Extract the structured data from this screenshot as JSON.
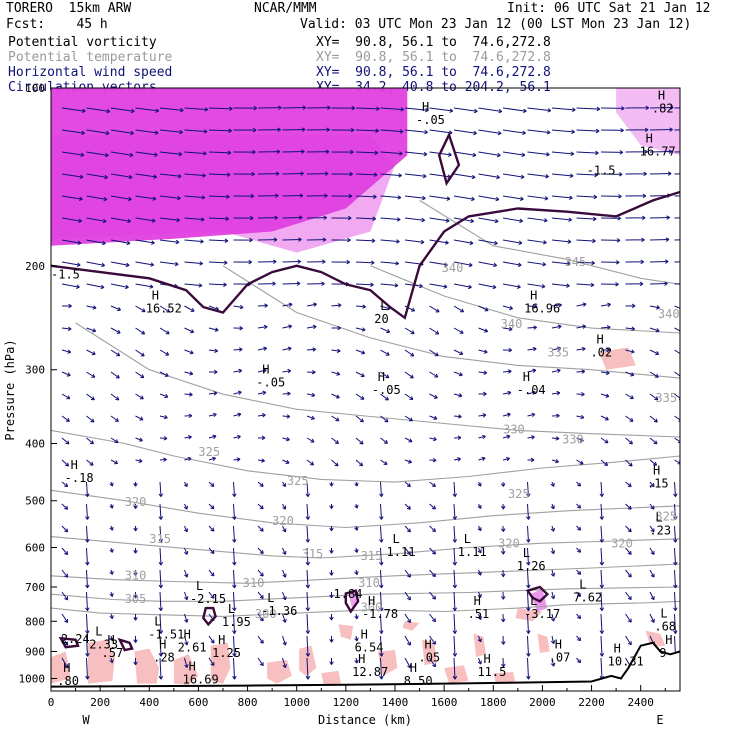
{
  "header": {
    "model": "TORERO  15km ARW",
    "org": "NCAR/MMM",
    "init": "Init: 06 UTC Sat 21 Jan 12",
    "fcst": "Fcst:    45 h",
    "valid": "Valid: 03 UTC Mon 23 Jan 12 (00 LST Mon 23 Jan 12)",
    "fields": [
      {
        "name": "Potential vorticity",
        "xy": "XY=  90.8, 56.1 to  74.6,272.8",
        "color": "#000000"
      },
      {
        "name": "Potential temperature",
        "xy": "XY=  90.8, 56.1 to  74.6,272.8",
        "color": "#9a9a9a"
      },
      {
        "name": "Horizontal wind speed",
        "xy": "XY=  90.8, 56.1 to  74.6,272.8",
        "color": "#11117a"
      },
      {
        "name": "Circulation vectors",
        "xy": "XY=  34.2, 40.8 to 204.2, 56.1",
        "color": "#11117a"
      }
    ]
  },
  "chart_data": {
    "type": "cross-section",
    "xlabel": "Distance (km)",
    "ylabel": "Pressure (hPa)",
    "xlim": [
      0,
      2560
    ],
    "ylim": [
      1050,
      100
    ],
    "y_scale": "log",
    "xticks": [
      0,
      200,
      400,
      600,
      800,
      1000,
      1200,
      1400,
      1600,
      1800,
      2000,
      2200,
      2400
    ],
    "yticks": [
      200,
      300,
      400,
      500,
      600,
      700,
      800,
      900,
      1000
    ],
    "y_top_label": "100",
    "end_labels": {
      "left": "W",
      "right": "E"
    },
    "colors": {
      "wind": "#11117a",
      "pv_contour": "#3a0a3a",
      "theta": "#a0a0a0",
      "shade_pink": "#f6b4b4",
      "shade_magenta": "#e040e0"
    },
    "theta_contours": [
      {
        "value": 300,
        "points": [
          [
            0,
            760
          ],
          [
            200,
            775
          ],
          [
            450,
            780
          ],
          [
            700,
            785
          ],
          [
            1000,
            775
          ],
          [
            1300,
            765
          ],
          [
            1600,
            770
          ],
          [
            1900,
            760
          ],
          [
            2100,
            750
          ],
          [
            2400,
            745
          ],
          [
            2560,
            740
          ]
        ]
      },
      {
        "value": 305,
        "points": [
          [
            0,
            720
          ],
          [
            250,
            735
          ],
          [
            450,
            740
          ],
          [
            700,
            740
          ],
          [
            1000,
            730
          ],
          [
            1300,
            720
          ],
          [
            1700,
            715
          ],
          [
            2100,
            705
          ],
          [
            2560,
            700
          ]
        ]
      },
      {
        "value": 310,
        "points": [
          [
            0,
            670
          ],
          [
            250,
            680
          ],
          [
            500,
            685
          ],
          [
            800,
            690
          ],
          [
            1100,
            680
          ],
          [
            1400,
            670
          ],
          [
            1800,
            660
          ],
          [
            2200,
            650
          ],
          [
            2560,
            640
          ]
        ]
      },
      {
        "value": 315,
        "points": [
          [
            0,
            575
          ],
          [
            300,
            590
          ],
          [
            600,
            605
          ],
          [
            900,
            620
          ],
          [
            1100,
            625
          ],
          [
            1400,
            615
          ],
          [
            1700,
            600
          ],
          [
            2000,
            590
          ],
          [
            2300,
            585
          ],
          [
            2560,
            580
          ]
        ]
      },
      {
        "value": 320,
        "points": [
          [
            0,
            480
          ],
          [
            300,
            500
          ],
          [
            600,
            525
          ],
          [
            900,
            545
          ],
          [
            1200,
            555
          ],
          [
            1500,
            545
          ],
          [
            1800,
            530
          ],
          [
            2100,
            520
          ],
          [
            2560,
            510
          ]
        ]
      },
      {
        "value": 325,
        "points": [
          [
            0,
            380
          ],
          [
            300,
            400
          ],
          [
            500,
            420
          ],
          [
            800,
            445
          ],
          [
            1100,
            460
          ],
          [
            1400,
            465
          ],
          [
            1700,
            455
          ],
          [
            2000,
            440
          ],
          [
            2300,
            430
          ],
          [
            2560,
            420
          ]
        ]
      },
      {
        "value": 330,
        "points": [
          [
            100,
            250
          ],
          [
            400,
            300
          ],
          [
            700,
            330
          ],
          [
            1000,
            350
          ],
          [
            1300,
            360
          ],
          [
            1600,
            370
          ],
          [
            1900,
            380
          ],
          [
            2200,
            385
          ],
          [
            2560,
            390
          ]
        ]
      },
      {
        "value": 335,
        "points": [
          [
            700,
            200
          ],
          [
            1000,
            240
          ],
          [
            1300,
            265
          ],
          [
            1600,
            285
          ],
          [
            1900,
            295
          ],
          [
            2200,
            300
          ],
          [
            2560,
            310
          ]
        ]
      },
      {
        "value": 340,
        "points": [
          [
            1300,
            200
          ],
          [
            1600,
            225
          ],
          [
            1900,
            245
          ],
          [
            2200,
            255
          ],
          [
            2560,
            260
          ]
        ]
      },
      {
        "value": 345,
        "points": [
          [
            1500,
            155
          ],
          [
            1800,
            185
          ],
          [
            2100,
            195
          ],
          [
            2400,
            210
          ],
          [
            2560,
            215
          ]
        ]
      }
    ],
    "theta_label_positions": [
      {
        "text": "300",
        "x": 830,
        "p": 790
      },
      {
        "text": "300",
        "x": 1260,
        "p": 770
      },
      {
        "text": "305",
        "x": 300,
        "p": 745
      },
      {
        "text": "310",
        "x": 780,
        "p": 700
      },
      {
        "text": "310",
        "x": 1250,
        "p": 700
      },
      {
        "text": "310",
        "x": 300,
        "p": 680
      },
      {
        "text": "315",
        "x": 400,
        "p": 590
      },
      {
        "text": "315",
        "x": 1020,
        "p": 625
      },
      {
        "text": "315",
        "x": 1260,
        "p": 630
      },
      {
        "text": "320",
        "x": 300,
        "p": 510
      },
      {
        "text": "320",
        "x": 900,
        "p": 550
      },
      {
        "text": "320",
        "x": 1820,
        "p": 600
      },
      {
        "text": "320",
        "x": 2280,
        "p": 600
      },
      {
        "text": "325",
        "x": 600,
        "p": 420
      },
      {
        "text": "325",
        "x": 960,
        "p": 470
      },
      {
        "text": "325",
        "x": 1860,
        "p": 495
      },
      {
        "text": "325",
        "x": 2460,
        "p": 540
      },
      {
        "text": "330",
        "x": 1840,
        "p": 385
      },
      {
        "text": "330",
        "x": 2080,
        "p": 400
      },
      {
        "text": "335",
        "x": 2020,
        "p": 285
      },
      {
        "text": "335",
        "x": 2460,
        "p": 340
      },
      {
        "text": "340",
        "x": 1590,
        "p": 205
      },
      {
        "text": "340",
        "x": 1830,
        "p": 255
      },
      {
        "text": "340",
        "x": 2470,
        "p": 245
      },
      {
        "text": "345",
        "x": 2090,
        "p": 200
      }
    ],
    "pv_contours": [
      {
        "value": 1.5,
        "points": [
          [
            0,
            200
          ],
          [
            200,
            205
          ],
          [
            400,
            210
          ],
          [
            550,
            220
          ],
          [
            620,
            235
          ],
          [
            700,
            240
          ],
          [
            800,
            215
          ],
          [
            900,
            205
          ],
          [
            1000,
            200
          ],
          [
            1100,
            205
          ],
          [
            1200,
            215
          ],
          [
            1300,
            220
          ],
          [
            1380,
            235
          ],
          [
            1440,
            245
          ],
          [
            1500,
            200
          ],
          [
            1600,
            175
          ],
          [
            1700,
            165
          ],
          [
            1900,
            160
          ],
          [
            2100,
            162
          ],
          [
            2300,
            165
          ],
          [
            2450,
            155
          ],
          [
            2560,
            150
          ]
        ]
      }
    ],
    "pv_closed_contours": [
      {
        "points": [
          [
            1580,
            130
          ],
          [
            1620,
            120
          ],
          [
            1660,
            135
          ],
          [
            1610,
            145
          ],
          [
            1580,
            130
          ]
        ]
      },
      {
        "points": [
          [
            1200,
            718
          ],
          [
            1240,
            710
          ],
          [
            1250,
            740
          ],
          [
            1220,
            770
          ],
          [
            1200,
            745
          ],
          [
            1200,
            718
          ]
        ]
      },
      {
        "points": [
          [
            1940,
            710
          ],
          [
            1990,
            700
          ],
          [
            2020,
            720
          ],
          [
            1990,
            740
          ],
          [
            1960,
            730
          ],
          [
            1940,
            710
          ]
        ]
      },
      {
        "points": [
          [
            630,
            760
          ],
          [
            660,
            760
          ],
          [
            670,
            785
          ],
          [
            640,
            810
          ],
          [
            620,
            790
          ],
          [
            630,
            760
          ]
        ]
      },
      {
        "points": [
          [
            40,
            855
          ],
          [
            100,
            860
          ],
          [
            110,
            880
          ],
          [
            60,
            885
          ],
          [
            40,
            855
          ]
        ]
      },
      {
        "points": [
          [
            280,
            860
          ],
          [
            320,
            870
          ],
          [
            330,
            890
          ],
          [
            300,
            895
          ],
          [
            280,
            860
          ]
        ]
      }
    ],
    "pv_labels": [
      {
        "text": "-1.5",
        "x": 0,
        "p": 210
      },
      {
        "text": "-1.5",
        "x": 2180,
        "p": 140
      },
      {
        "text": "2.24",
        "x": 40,
        "p": 870
      },
      {
        "text": "1.84",
        "x": 1150,
        "p": 730
      }
    ],
    "extrema": [
      {
        "kind": "H",
        "value": ".82",
        "x": 2470,
        "p": 110
      },
      {
        "kind": "H",
        "value": "-.05",
        "x": 1510,
        "p": 115
      },
      {
        "kind": "H",
        "value": "16.77",
        "x": 2420,
        "p": 130
      },
      {
        "kind": "H",
        "value": "16.96",
        "x": 1950,
        "p": 240
      },
      {
        "kind": "H",
        "value": "16.52",
        "x": 410,
        "p": 240
      },
      {
        "kind": "L",
        "value": "20",
        "x": 1340,
        "p": 250
      },
      {
        "kind": "H",
        "value": ".02",
        "x": 2220,
        "p": 285
      },
      {
        "kind": "H",
        "value": "-.05",
        "x": 860,
        "p": 320
      },
      {
        "kind": "H",
        "value": "-.05",
        "x": 1330,
        "p": 330
      },
      {
        "kind": "H",
        "value": "-.04",
        "x": 1920,
        "p": 330
      },
      {
        "kind": "H",
        "value": "-.18",
        "x": 80,
        "p": 465
      },
      {
        "kind": "H",
        "value": ".15",
        "x": 2450,
        "p": 475
      },
      {
        "kind": "L",
        "value": ".23",
        "x": 2460,
        "p": 570
      },
      {
        "kind": "L",
        "value": "1.11",
        "x": 1390,
        "p": 620
      },
      {
        "kind": "L",
        "value": "1.11",
        "x": 1680,
        "p": 620
      },
      {
        "kind": "L",
        "value": "1.26",
        "x": 1920,
        "p": 655
      },
      {
        "kind": "L",
        "value": "7.62",
        "x": 2150,
        "p": 740
      },
      {
        "kind": "L",
        "value": "-2.15",
        "x": 590,
        "p": 745
      },
      {
        "kind": "L",
        "value": "-1.36",
        "x": 880,
        "p": 780
      },
      {
        "kind": "H",
        "value": "-1.78",
        "x": 1290,
        "p": 790
      },
      {
        "kind": "H",
        "value": ".51",
        "x": 1720,
        "p": 790
      },
      {
        "kind": "L",
        "value": "-3.17",
        "x": 1950,
        "p": 790
      },
      {
        "kind": "L",
        "value": "1.95",
        "x": 720,
        "p": 815
      },
      {
        "kind": "L",
        "value": ".68",
        "x": 2480,
        "p": 830
      },
      {
        "kind": "L",
        "value": "-1.51",
        "x": 420,
        "p": 855
      },
      {
        "kind": "L",
        "value": "2.33",
        "x": 180,
        "p": 890
      },
      {
        "kind": "H",
        "value": "2.61",
        "x": 540,
        "p": 900
      },
      {
        "kind": "H",
        "value": "6.54",
        "x": 1260,
        "p": 900
      },
      {
        "kind": "H",
        "value": ".57",
        "x": 230,
        "p": 920
      },
      {
        "kind": "H",
        "value": "1.25",
        "x": 680,
        "p": 920
      },
      {
        "kind": "H",
        "value": ".28",
        "x": 440,
        "p": 935
      },
      {
        "kind": "H",
        "value": ".05",
        "x": 1520,
        "p": 935
      },
      {
        "kind": "H",
        "value": ".07",
        "x": 2050,
        "p": 935
      },
      {
        "kind": "H",
        "value": "10.31",
        "x": 2290,
        "p": 950
      },
      {
        "kind": "H",
        "value": "9",
        "x": 2500,
        "p": 920
      },
      {
        "kind": "H",
        "value": "12.87",
        "x": 1250,
        "p": 990
      },
      {
        "kind": "H",
        "value": "11.5",
        "x": 1760,
        "p": 990
      },
      {
        "kind": "H",
        "value": "16.69",
        "x": 560,
        "p": 1020
      },
      {
        "kind": "H",
        "value": "8.50",
        "x": 1460,
        "p": 1025
      },
      {
        "kind": "H",
        "value": ".80",
        "x": 50,
        "p": 1025
      }
    ],
    "terrain": [
      [
        0,
        1032
      ],
      [
        400,
        1030
      ],
      [
        800,
        1028
      ],
      [
        1200,
        1025
      ],
      [
        1600,
        1020
      ],
      [
        2000,
        1015
      ],
      [
        2200,
        1012
      ],
      [
        2280,
        990
      ],
      [
        2320,
        1000
      ],
      [
        2350,
        960
      ],
      [
        2400,
        880
      ],
      [
        2450,
        870
      ],
      [
        2480,
        900
      ],
      [
        2520,
        910
      ],
      [
        2560,
        900
      ]
    ]
  }
}
